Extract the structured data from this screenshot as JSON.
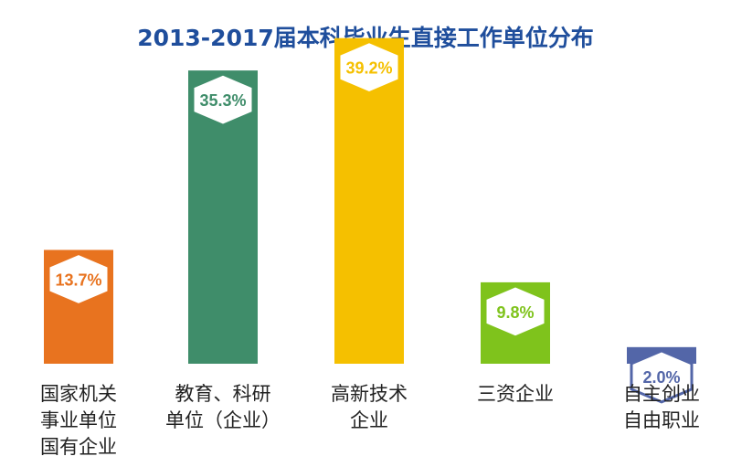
{
  "chart_data": {
    "type": "bar",
    "title": "2013-2017届本科毕业生直接工作单位分布",
    "categories": [
      [
        "国家机关",
        "事业单位",
        "国有企业"
      ],
      [
        "教育、科研",
        "单位（企业）"
      ],
      [
        "高新技术",
        "企业"
      ],
      [
        "三资企业"
      ],
      [
        "自主创业",
        "自由职业"
      ]
    ],
    "values": [
      13.7,
      35.3,
      39.2,
      9.8,
      2.0
    ],
    "value_labels": [
      "13.7%",
      "35.3%",
      "39.2%",
      "9.8%",
      "2.0%"
    ],
    "colors": [
      "#e8731f",
      "#3f8d6a",
      "#f5c000",
      "#7fc31c",
      "#5366a8"
    ],
    "ylim": [
      0,
      45
    ],
    "grid": false,
    "legend": "none"
  }
}
